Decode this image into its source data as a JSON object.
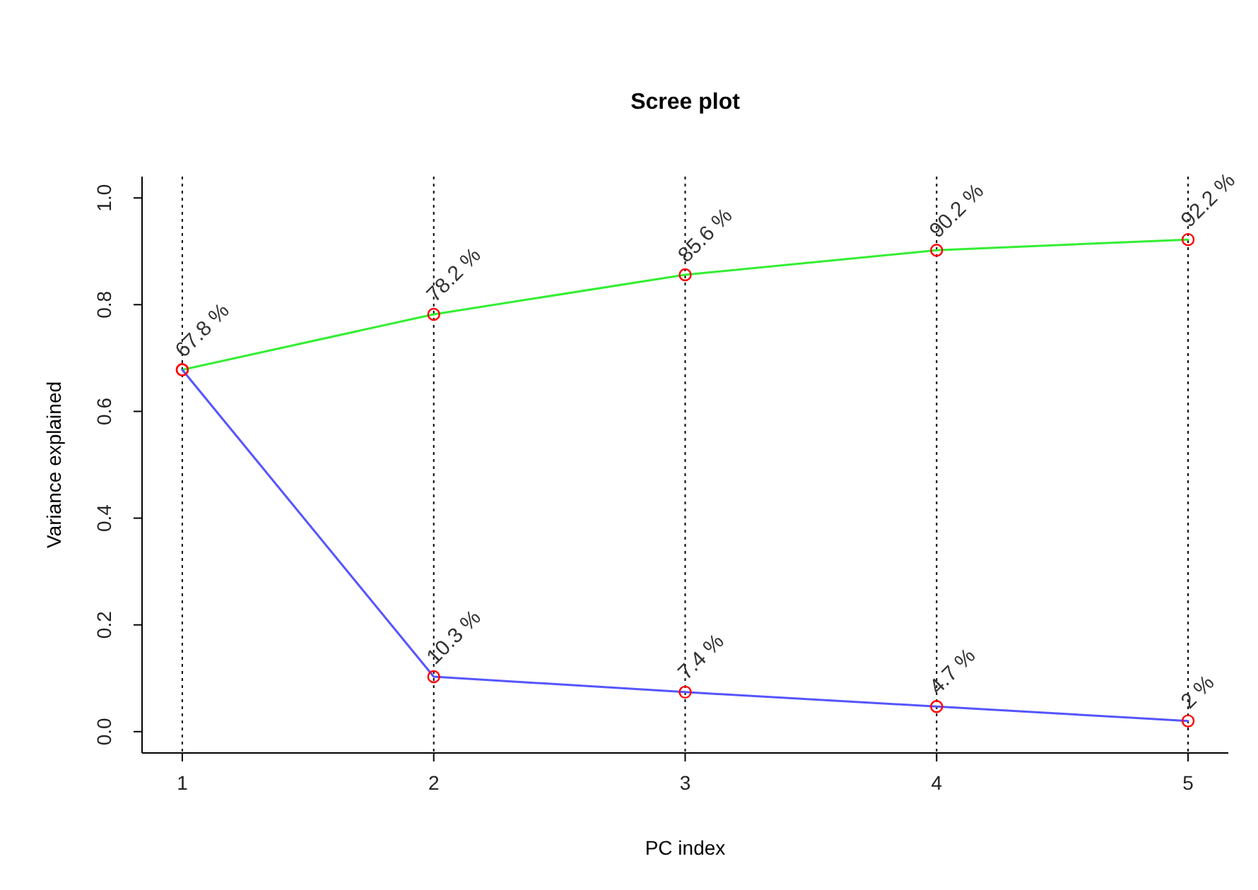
{
  "chart_data": {
    "type": "line",
    "title": "Scree plot",
    "xlabel": "PC index",
    "ylabel": "Variance explained",
    "x": [
      1,
      2,
      3,
      4,
      5
    ],
    "series": [
      {
        "color": "#33ee33",
        "values": [
          0.678,
          0.782,
          0.856,
          0.902,
          0.922
        ],
        "value_labels": [
          "67.8 %",
          "78.2 %",
          "85.6 %",
          "90.2 %",
          "92.2 %"
        ]
      },
      {
        "color": "#5555ff",
        "values": [
          0.678,
          0.103,
          0.074,
          0.047,
          0.02
        ],
        "value_labels": [
          null,
          "10.3 %",
          "7.4 %",
          "4.7 %",
          "2 %"
        ]
      }
    ],
    "xlim": [
      0.84,
      5.16
    ],
    "ylim": [
      -0.04,
      1.04
    ],
    "xticks": [
      1,
      2,
      3,
      4,
      5
    ],
    "yticks": [
      {
        "value": 0,
        "label": "0.0"
      },
      0.2,
      0.4,
      0.6,
      0.8,
      {
        "value": 1,
        "label": "1.0"
      }
    ],
    "marker": "circle",
    "grid": false,
    "ref_lines": [
      {
        "axis": "x",
        "value": 1,
        "color": "#000000",
        "line_style": "dotted"
      },
      {
        "axis": "x",
        "value": 2,
        "color": "#000000",
        "line_style": "dotted"
      },
      {
        "axis": "x",
        "value": 3,
        "color": "#000000",
        "line_style": "dotted"
      },
      {
        "axis": "x",
        "value": 4,
        "color": "#000000",
        "line_style": "dotted"
      },
      {
        "axis": "x",
        "value": 5,
        "color": "#000000",
        "line_style": "dotted"
      }
    ]
  }
}
